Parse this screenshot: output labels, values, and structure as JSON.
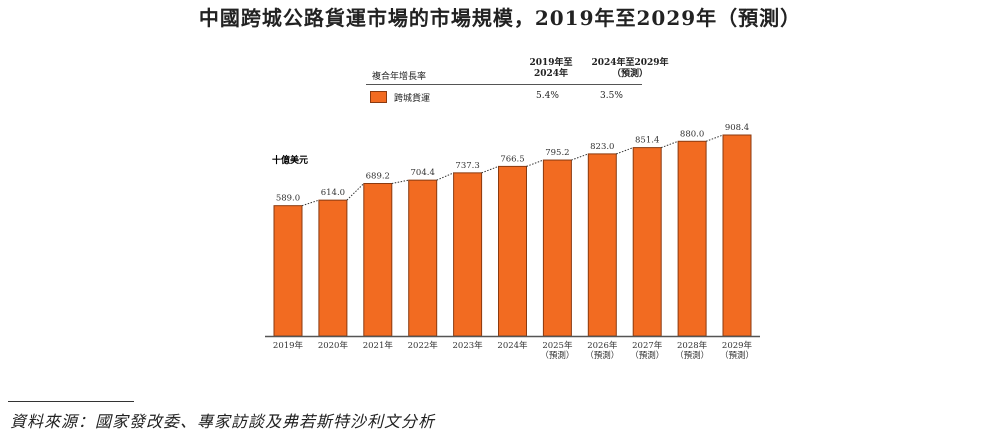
{
  "title": "中國跨城公路貨運市場的市場規模，2019年至2029年（預測）",
  "legend": {
    "header": "複合年增長率",
    "col1": [
      "2019年至",
      "2024年"
    ],
    "col2": [
      "2024年至2029年",
      "（預測）"
    ],
    "series": "跨城貨運",
    "cagr1": "5.4%",
    "cagr2": "3.5%"
  },
  "source": "資料來源：國家發改委、專家訪談及弗若斯特沙利文分析",
  "chart_data": {
    "type": "bar",
    "title": "中國跨城公路貨運市場的市場規模，2019年至2029年（預測）",
    "ylabel": "十億美元",
    "categories": [
      [
        "2019年"
      ],
      [
        "2020年"
      ],
      [
        "2021年"
      ],
      [
        "2022年"
      ],
      [
        "2023年"
      ],
      [
        "2024年"
      ],
      [
        "2025年",
        "（預測）"
      ],
      [
        "2026年",
        "（預測）"
      ],
      [
        "2027年",
        "（預測）"
      ],
      [
        "2028年",
        "（預測）"
      ],
      [
        "2029年",
        "（預測）"
      ]
    ],
    "values": [
      589.0,
      614.0,
      689.2,
      704.4,
      737.3,
      766.5,
      795.2,
      823.0,
      851.4,
      880.0,
      908.4
    ],
    "labels": [
      "589.0",
      "614.0",
      "689.2",
      "704.4",
      "737.3",
      "766.5",
      "795.2",
      "823.0",
      "851.4",
      "880.0",
      "908.4"
    ],
    "ylim": [
      0,
      908.4
    ],
    "color": "#F26B21",
    "border": "#8A3A10"
  }
}
